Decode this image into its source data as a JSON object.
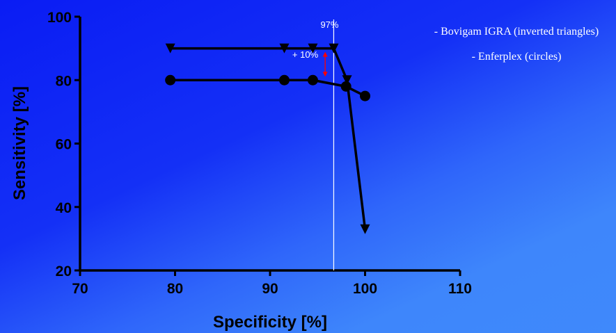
{
  "colors": {
    "axis": "#000000",
    "series": "#000000",
    "marker_line": "#ffffff",
    "arrow": "#ff0000",
    "text_light": "#ffffff"
  },
  "legend": {
    "items": [
      "- Bovigam IGRA (inverted triangles)",
      "- Enferplex (circles)"
    ]
  },
  "chart_data": {
    "type": "line",
    "xlabel": "Specificity [%]",
    "ylabel": "Sensitivity [%]",
    "xlim": [
      70,
      110
    ],
    "ylim": [
      20,
      100
    ],
    "xticks": [
      70,
      80,
      90,
      100,
      110
    ],
    "yticks": [
      20,
      40,
      60,
      80,
      100
    ],
    "grid": false,
    "legend_position": "top-right",
    "series": [
      {
        "name": "Bovigam IGRA",
        "marker": "inverted-triangle",
        "x": [
          79.5,
          91.5,
          94.5,
          96.7,
          98.1,
          100
        ],
        "y": [
          90,
          90,
          90,
          90,
          80,
          33
        ]
      },
      {
        "name": "Enferplex",
        "marker": "circle",
        "x": [
          79.5,
          91.5,
          94.5,
          98.0,
          100
        ],
        "y": [
          80,
          80,
          80,
          78,
          75
        ]
      }
    ],
    "annotations": {
      "vline": {
        "x": 96.7,
        "label": "97%"
      },
      "arrow": {
        "x": 95.8,
        "y_from": 80,
        "y_to": 90,
        "label": "+ 10%"
      }
    }
  }
}
